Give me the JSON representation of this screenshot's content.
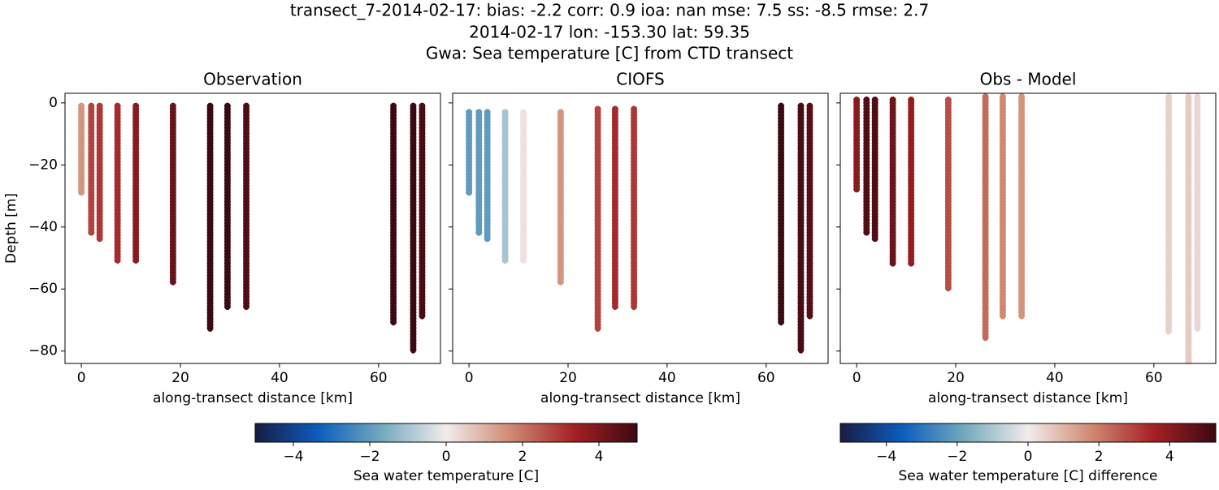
{
  "title": [
    "transect_7-2014-02-17: bias: -2.2  corr: 0.9  ioa: nan  mse: 7.5  ss: -8.5  rmse: 2.7",
    "2014-02-17 lon: -153.30 lat: 59.35",
    "Gwa: Sea temperature [C] from CTD transect"
  ],
  "chart_data": [
    {
      "type": "scatter",
      "title": "Observation",
      "xlabel": "along-transect distance [km]",
      "ylabel": "Depth [m]",
      "xlim": [
        -3.3,
        72.5
      ],
      "ylim": [
        -84,
        3.1
      ],
      "xticks": [
        0,
        20,
        40,
        60
      ],
      "yticks": [
        0,
        {
          "value": -20,
          "label": "−20"
        },
        {
          "value": -40,
          "label": "−40"
        },
        {
          "value": -60,
          "label": "−60"
        },
        {
          "value": -80,
          "label": "−80"
        }
      ],
      "x": [
        0,
        2,
        3.7,
        7.3,
        11,
        18.5,
        26,
        29.5,
        33.3,
        63,
        67,
        68.8
      ],
      "top": [
        -1,
        -1,
        -1,
        -1,
        -1,
        -1,
        -1,
        -1,
        -1,
        -1,
        -1,
        -1
      ],
      "bottom": [
        -29,
        -42,
        -44,
        -51,
        -51,
        -58,
        -73,
        -66,
        -66,
        -71,
        -80,
        -69
      ],
      "values": [
        1.5,
        2.8,
        3,
        3.2,
        3.8,
        4.3,
        5,
        5,
        4.7,
        5,
        5,
        4.8
      ]
    },
    {
      "type": "scatter",
      "title": "CIOFS",
      "xlabel": "along-transect distance [km]",
      "xlim": [
        -3.3,
        72.5
      ],
      "ylim": [
        -84,
        3.1
      ],
      "xticks": [
        0,
        20,
        40,
        60
      ],
      "yticks": [
        0,
        -20,
        -40,
        -60,
        -80
      ],
      "x": [
        0,
        2,
        3.7,
        7.3,
        11,
        18.5,
        26,
        29.5,
        33.3,
        63,
        67,
        68.8
      ],
      "top": [
        -3,
        -3,
        -3,
        -3,
        -3,
        -3,
        -2,
        -2,
        -2,
        -1,
        -1,
        -1
      ],
      "bottom": [
        -29,
        -42,
        -44,
        -51,
        -51,
        -58,
        -73,
        -66,
        -66,
        -71,
        -80,
        -69
      ],
      "values": [
        -2,
        -2,
        -2,
        -1,
        0.2,
        1.5,
        2.8,
        3.2,
        3,
        5,
        4.8,
        4.6
      ]
    },
    {
      "type": "scatter",
      "title": "Obs - Model",
      "xlabel": "along-transect distance [km]",
      "xlim": [
        -3.3,
        72.5
      ],
      "ylim": [
        -84,
        3.1
      ],
      "xticks": [
        0,
        20,
        40,
        60
      ],
      "yticks": [
        0,
        -20,
        -40,
        -60,
        -80
      ],
      "x": [
        0,
        2,
        3.7,
        7.3,
        11,
        18.5,
        26,
        29.5,
        33.3,
        63,
        67,
        68.8
      ],
      "top": [
        1,
        1,
        1,
        1,
        1,
        1,
        2,
        2,
        2,
        2,
        2,
        2
      ],
      "bottom": [
        -28,
        -42,
        -44,
        -52,
        -52,
        -60,
        -76,
        -69,
        -69,
        -74,
        -88,
        -73
      ],
      "values": [
        4,
        5,
        5,
        4.5,
        3.8,
        2.8,
        2.3,
        1.8,
        1.6,
        0.5,
        0.6,
        0.4
      ]
    },
    {
      "type": "colorbar",
      "label": "Sea water temperature [C]",
      "clim": [
        -5,
        5
      ],
      "ticks": [
        {
          "value": -4,
          "label": "−4"
        },
        {
          "value": -2,
          "label": "−2"
        },
        0,
        2,
        4
      ],
      "colors": [
        "#181c43",
        "#0c5ebe",
        "#75aabe",
        "#f1eceb",
        "#d08b73",
        "#a52125",
        "#3c0912"
      ]
    },
    {
      "type": "colorbar",
      "label": "Sea water temperature [C] difference",
      "clim": [
        -5.3,
        5.3
      ],
      "ticks": [
        {
          "value": -4,
          "label": "−4"
        },
        {
          "value": -2,
          "label": "−2"
        },
        0,
        2,
        4
      ],
      "colors": [
        "#181c43",
        "#0c5ebe",
        "#75aabe",
        "#f1eceb",
        "#d08b73",
        "#a52125",
        "#3c0912"
      ]
    }
  ]
}
